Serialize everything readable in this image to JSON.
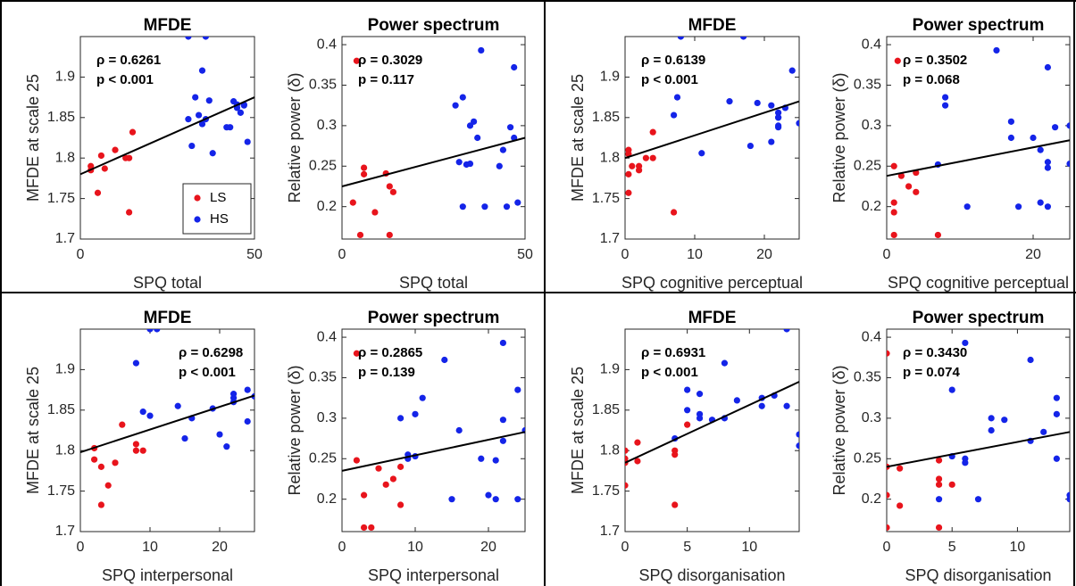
{
  "chart_data": [
    {
      "type": "scatter",
      "title": "MFDE",
      "xlabel": "SPQ total",
      "ylabel": "MFDE at scale 25",
      "annotations": [
        "ρ = 0.6261",
        "p < 0.001"
      ],
      "legend": true,
      "legend_loc": "lower right",
      "xlim": [
        0,
        50
      ],
      "xticks": [
        0,
        50
      ],
      "ylim": [
        1.7,
        1.95
      ],
      "yticks": [
        1.7,
        1.75,
        1.8,
        1.85,
        1.9
      ],
      "fit": {
        "x": [
          0,
          50
        ],
        "y": [
          1.78,
          1.875
        ]
      },
      "series": [
        {
          "name": "LS",
          "color": "#e8141c",
          "x": [
            3,
            3,
            5,
            6,
            7,
            10,
            13,
            14,
            14,
            15
          ],
          "values": [
            1.79,
            1.785,
            1.757,
            1.803,
            1.787,
            1.81,
            1.8,
            1.733,
            1.8,
            1.832
          ]
        },
        {
          "name": "HS",
          "color": "#1424e8",
          "x": [
            31,
            31,
            32,
            33,
            34,
            35,
            35,
            36,
            36,
            37,
            38,
            42,
            43,
            44,
            45,
            45,
            46,
            47,
            47,
            48
          ],
          "values": [
            1.848,
            1.95,
            1.815,
            1.875,
            1.853,
            1.908,
            1.842,
            1.95,
            1.848,
            1.871,
            1.806,
            1.838,
            1.838,
            1.87,
            1.862,
            1.866,
            1.856,
            1.865,
            1.866,
            1.82
          ]
        }
      ]
    },
    {
      "type": "scatter",
      "title": "Power spectrum",
      "xlabel": "SPQ total",
      "ylabel": "Relative power (δ)",
      "annotations": [
        "ρ = 0.3029",
        "p = 0.117"
      ],
      "legend": false,
      "xlim": [
        0,
        50
      ],
      "xticks": [
        0,
        50
      ],
      "ylim": [
        0.16,
        0.41
      ],
      "yticks": [
        0.2,
        0.25,
        0.3,
        0.35,
        0.4
      ],
      "fit": {
        "x": [
          0,
          50
        ],
        "y": [
          0.225,
          0.285
        ]
      },
      "series": [
        {
          "name": "LS",
          "color": "#e8141c",
          "x": [
            3,
            4,
            5,
            6,
            6,
            9,
            12,
            13,
            13,
            14
          ],
          "values": [
            0.205,
            0.38,
            0.165,
            0.24,
            0.248,
            0.193,
            0.241,
            0.165,
            0.225,
            0.218
          ]
        },
        {
          "name": "HS",
          "color": "#1424e8",
          "x": [
            31,
            32,
            33,
            33,
            34,
            35,
            35,
            36,
            37,
            38,
            39,
            43,
            44,
            45,
            46,
            47,
            47,
            48
          ],
          "values": [
            0.325,
            0.255,
            0.335,
            0.2,
            0.252,
            0.253,
            0.3,
            0.305,
            0.285,
            0.393,
            0.2,
            0.25,
            0.27,
            0.2,
            0.298,
            0.372,
            0.285,
            0.205
          ]
        }
      ]
    },
    {
      "type": "scatter",
      "title": "MFDE",
      "xlabel": "SPQ cognitive perceptual",
      "ylabel": "MFDE at scale 25",
      "annotations": [
        "ρ = 0.6139",
        "p < 0.001"
      ],
      "legend": false,
      "xlim": [
        0,
        25
      ],
      "xticks": [
        0,
        10,
        20
      ],
      "ylim": [
        1.7,
        1.95
      ],
      "yticks": [
        1.7,
        1.75,
        1.8,
        1.85,
        1.9
      ],
      "fit": {
        "x": [
          0,
          25
        ],
        "y": [
          1.8,
          1.87
        ]
      },
      "series": [
        {
          "name": "LS",
          "color": "#e8141c",
          "x": [
            0.5,
            0.5,
            0.5,
            0.5,
            1,
            2,
            2,
            3,
            4,
            4,
            7
          ],
          "values": [
            1.81,
            1.805,
            1.78,
            1.757,
            1.79,
            1.785,
            1.79,
            1.8,
            1.8,
            1.832,
            1.733
          ]
        },
        {
          "name": "HS",
          "color": "#1424e8",
          "x": [
            7,
            7.5,
            8,
            11,
            15,
            17,
            18,
            19,
            21,
            21,
            22,
            22,
            22,
            22,
            22,
            23,
            24,
            25
          ],
          "values": [
            1.853,
            1.875,
            1.95,
            1.806,
            1.87,
            1.95,
            1.815,
            1.868,
            1.82,
            1.865,
            1.85,
            1.84,
            1.838,
            1.856,
            1.85,
            1.862,
            1.908,
            1.843
          ]
        }
      ]
    },
    {
      "type": "scatter",
      "title": "Power spectrum",
      "xlabel": "SPQ cognitive perceptual",
      "ylabel": "Relative power (δ)",
      "annotations": [
        "ρ = 0.3502",
        "p = 0.068"
      ],
      "legend": false,
      "xlim": [
        0,
        25
      ],
      "xticks": [
        0,
        20
      ],
      "ylim": [
        0.16,
        0.41
      ],
      "yticks": [
        0.2,
        0.25,
        0.3,
        0.35,
        0.4
      ],
      "fit": {
        "x": [
          0,
          25
        ],
        "y": [
          0.238,
          0.282
        ]
      },
      "series": [
        {
          "name": "LS",
          "color": "#e8141c",
          "x": [
            1.5,
            1,
            1,
            1,
            1,
            2,
            3,
            4,
            4,
            7
          ],
          "values": [
            0.38,
            0.25,
            0.205,
            0.193,
            0.165,
            0.238,
            0.225,
            0.242,
            0.218,
            0.165
          ]
        },
        {
          "name": "HS",
          "color": "#1424e8",
          "x": [
            7,
            8,
            8,
            11,
            15,
            17,
            17,
            18,
            20,
            21,
            21,
            22,
            22,
            22,
            22,
            23,
            25,
            25
          ],
          "values": [
            0.252,
            0.335,
            0.325,
            0.2,
            0.393,
            0.305,
            0.285,
            0.2,
            0.285,
            0.27,
            0.205,
            0.372,
            0.255,
            0.248,
            0.2,
            0.298,
            0.3,
            0.253
          ]
        }
      ]
    },
    {
      "type": "scatter",
      "title": "MFDE",
      "xlabel": "SPQ interpersonal",
      "ylabel": "MFDE at scale 25",
      "annotations": [
        "ρ = 0.6298",
        "p < 0.001"
      ],
      "legend": false,
      "xlim": [
        0,
        25
      ],
      "xticks": [
        0,
        10,
        20
      ],
      "ylim": [
        1.7,
        1.95
      ],
      "yticks": [
        1.7,
        1.75,
        1.8,
        1.85,
        1.9
      ],
      "fit": {
        "x": [
          0,
          25
        ],
        "y": [
          1.798,
          1.868
        ]
      },
      "series": [
        {
          "name": "LS",
          "color": "#e8141c",
          "x": [
            2,
            2,
            3,
            3,
            4,
            5,
            6,
            8,
            8,
            9
          ],
          "values": [
            1.803,
            1.789,
            1.733,
            1.78,
            1.757,
            1.785,
            1.832,
            1.808,
            1.8,
            1.8
          ]
        },
        {
          "name": "HS",
          "color": "#1424e8",
          "x": [
            8,
            9,
            10,
            10,
            11,
            14,
            15,
            16,
            19,
            20,
            21,
            22,
            22,
            22,
            24,
            24,
            25
          ],
          "values": [
            1.908,
            1.848,
            1.843,
            1.95,
            1.95,
            1.855,
            1.815,
            1.84,
            1.852,
            1.82,
            1.805,
            1.87,
            1.86,
            1.865,
            1.836,
            1.875,
            1.867
          ]
        }
      ]
    },
    {
      "type": "scatter",
      "title": "Power spectrum",
      "xlabel": "SPQ interpersonal",
      "ylabel": "Relative power (δ)",
      "annotations": [
        "ρ = 0.2865",
        "p = 0.139"
      ],
      "legend": false,
      "xlim": [
        0,
        25
      ],
      "xticks": [
        0,
        10,
        20
      ],
      "ylim": [
        0.16,
        0.41
      ],
      "yticks": [
        0.2,
        0.25,
        0.3,
        0.35,
        0.4
      ],
      "fit": {
        "x": [
          0,
          25
        ],
        "y": [
          0.235,
          0.283
        ]
      },
      "series": [
        {
          "name": "LS",
          "color": "#e8141c",
          "x": [
            2,
            2,
            3,
            3,
            4,
            5,
            6,
            7,
            8,
            8
          ],
          "values": [
            0.38,
            0.248,
            0.205,
            0.165,
            0.165,
            0.238,
            0.218,
            0.225,
            0.193,
            0.24
          ]
        },
        {
          "name": "HS",
          "color": "#1424e8",
          "x": [
            8,
            9,
            9,
            10,
            10,
            11,
            14,
            15,
            16,
            19,
            20,
            21,
            21,
            22,
            22,
            22,
            24,
            24,
            25
          ],
          "values": [
            0.3,
            0.255,
            0.25,
            0.305,
            0.253,
            0.325,
            0.372,
            0.2,
            0.285,
            0.25,
            0.205,
            0.248,
            0.2,
            0.393,
            0.298,
            0.272,
            0.335,
            0.2,
            0.285
          ]
        }
      ]
    },
    {
      "type": "scatter",
      "title": "MFDE",
      "xlabel": "SPQ disorganisation",
      "ylabel": "MFDE at scale 25",
      "annotations": [
        "ρ = 0.6931",
        "p < 0.001"
      ],
      "legend": false,
      "xlim": [
        0,
        14
      ],
      "xticks": [
        0,
        5,
        10
      ],
      "ylim": [
        1.7,
        1.95
      ],
      "yticks": [
        1.7,
        1.75,
        1.8,
        1.85,
        1.9
      ],
      "fit": {
        "x": [
          0,
          14
        ],
        "y": [
          1.785,
          1.885
        ]
      },
      "series": [
        {
          "name": "LS",
          "color": "#e8141c",
          "x": [
            0,
            0,
            0,
            0,
            1,
            1,
            4,
            4,
            4,
            5
          ],
          "values": [
            1.8,
            1.79,
            1.785,
            1.757,
            1.81,
            1.787,
            1.8,
            1.795,
            1.733,
            1.832
          ]
        },
        {
          "name": "HS",
          "color": "#1424e8",
          "x": [
            4,
            5,
            5,
            6,
            6,
            6,
            7,
            8,
            8,
            9,
            11,
            11,
            12,
            13,
            13,
            14,
            14
          ],
          "values": [
            1.815,
            1.875,
            1.85,
            1.87,
            1.84,
            1.845,
            1.838,
            1.908,
            1.84,
            1.862,
            1.865,
            1.855,
            1.868,
            1.95,
            1.855,
            1.82,
            1.806
          ]
        }
      ]
    },
    {
      "type": "scatter",
      "title": "Power spectrum",
      "xlabel": "SPQ disorganisation",
      "ylabel": "Relative power (δ)",
      "annotations": [
        "ρ = 0.3430",
        "p = 0.074"
      ],
      "legend": false,
      "xlim": [
        0,
        14
      ],
      "xticks": [
        0,
        5,
        10
      ],
      "ylim": [
        0.16,
        0.41
      ],
      "yticks": [
        0.2,
        0.25,
        0.3,
        0.35,
        0.4
      ],
      "fit": {
        "x": [
          0,
          14
        ],
        "y": [
          0.24,
          0.283
        ]
      },
      "series": [
        {
          "name": "LS",
          "color": "#e8141c",
          "x": [
            0,
            0,
            0,
            0,
            1,
            1,
            4,
            4,
            4,
            4,
            5
          ],
          "values": [
            0.38,
            0.24,
            0.205,
            0.165,
            0.238,
            0.192,
            0.248,
            0.225,
            0.218,
            0.165,
            0.218
          ]
        },
        {
          "name": "HS",
          "color": "#1424e8",
          "x": [
            4,
            5,
            5,
            6,
            6,
            6,
            7,
            8,
            8,
            9,
            11,
            11,
            12,
            13,
            13,
            13,
            14,
            14
          ],
          "values": [
            0.2,
            0.335,
            0.253,
            0.393,
            0.25,
            0.245,
            0.2,
            0.3,
            0.285,
            0.298,
            0.372,
            0.272,
            0.283,
            0.325,
            0.305,
            0.25,
            0.205,
            0.2
          ]
        }
      ]
    }
  ]
}
